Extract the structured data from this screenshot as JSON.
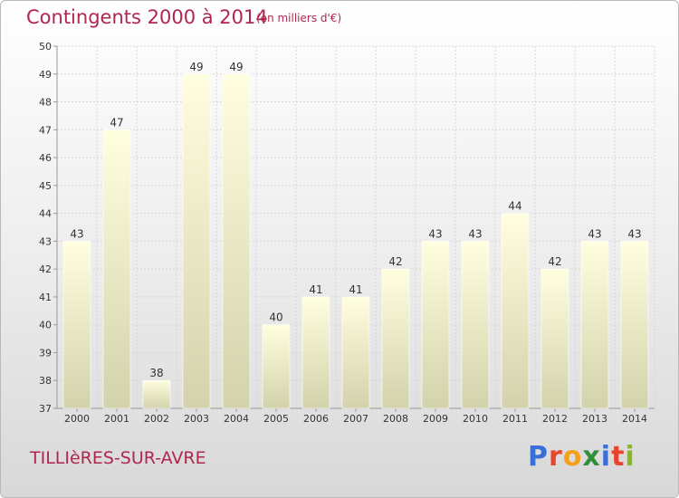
{
  "header": {
    "title": "Contingents 2000 à 2014",
    "subtitle": "(en milliers d'€)"
  },
  "footer": {
    "commune": "TILLIèRES-SUR-AVRE",
    "logo_text": "Proxiti"
  },
  "colors": {
    "title": "#b0264f",
    "bar_top": "#ffffe0",
    "bar_bottom": "#d2d2ac",
    "logo": [
      "#3a6fd8",
      "#e8452c",
      "#f4a01b",
      "#2f8f3a",
      "#3a6fd8",
      "#e8452c",
      "#8ab81e"
    ]
  },
  "chart_data": {
    "type": "bar",
    "categories": [
      "2000",
      "2001",
      "2002",
      "2003",
      "2004",
      "2005",
      "2006",
      "2007",
      "2008",
      "2009",
      "2010",
      "2011",
      "2012",
      "2013",
      "2014"
    ],
    "values": [
      43,
      47,
      38,
      49,
      49,
      40,
      41,
      41,
      42,
      43,
      43,
      44,
      42,
      43,
      43
    ],
    "ylim": [
      37,
      50
    ],
    "yticks": [
      37,
      38,
      39,
      40,
      41,
      42,
      43,
      44,
      45,
      46,
      47,
      48,
      49,
      50
    ],
    "grid": true,
    "data_labels": true
  }
}
